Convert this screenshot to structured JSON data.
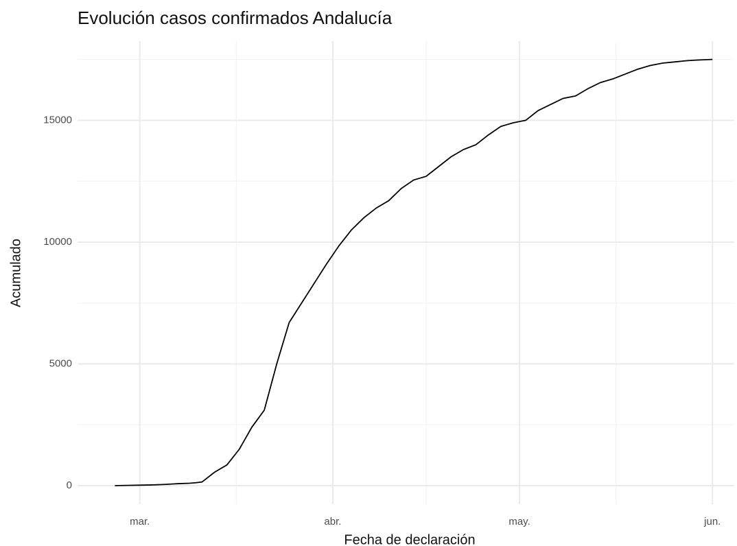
{
  "chart_data": {
    "type": "line",
    "title": "Evolución casos confirmados Andalucía",
    "x_label": "Fecha de declaración",
    "y_label": "Acumulado",
    "x": [
      -4,
      -2,
      0,
      2,
      4,
      6,
      8,
      9,
      10,
      12,
      14,
      16,
      18,
      20,
      22,
      24,
      26,
      28,
      30,
      32,
      34,
      36,
      38,
      40,
      42,
      44,
      46,
      48,
      50,
      52,
      54,
      56,
      58,
      60,
      62,
      64,
      66,
      68,
      70,
      72,
      74,
      76,
      78,
      80,
      82,
      84,
      86,
      88,
      90,
      92
    ],
    "series": [
      {
        "name": "Acumulado",
        "color": "#000000",
        "values": [
          0,
          10,
          20,
          30,
          50,
          80,
          100,
          120,
          150,
          550,
          850,
          1500,
          2400,
          3100,
          5000,
          6700,
          7500,
          8300,
          9100,
          9850,
          10500,
          11000,
          11400,
          11700,
          12200,
          12550,
          12700,
          13100,
          13500,
          13800,
          14000,
          14400,
          14750,
          14900,
          15000,
          15400,
          15650,
          15900,
          16000,
          16300,
          16550,
          16700,
          16900,
          17100,
          17250,
          17350,
          17400,
          17450,
          17480,
          17500
        ]
      }
    ],
    "xlim": [
      -10,
      95.5
    ],
    "xticks": [
      {
        "value": 0,
        "label": "mar."
      },
      {
        "value": 31,
        "label": "abr."
      },
      {
        "value": 61,
        "label": "may."
      },
      {
        "value": 92,
        "label": "jun."
      }
    ],
    "xminor": [
      15.5,
      46,
      76.5
    ],
    "ylim": [
      -760,
      18250
    ],
    "yticks": [
      0,
      5000,
      10000,
      15000
    ],
    "yminor": [
      2500,
      7500,
      12500,
      17500
    ],
    "grid": true
  }
}
